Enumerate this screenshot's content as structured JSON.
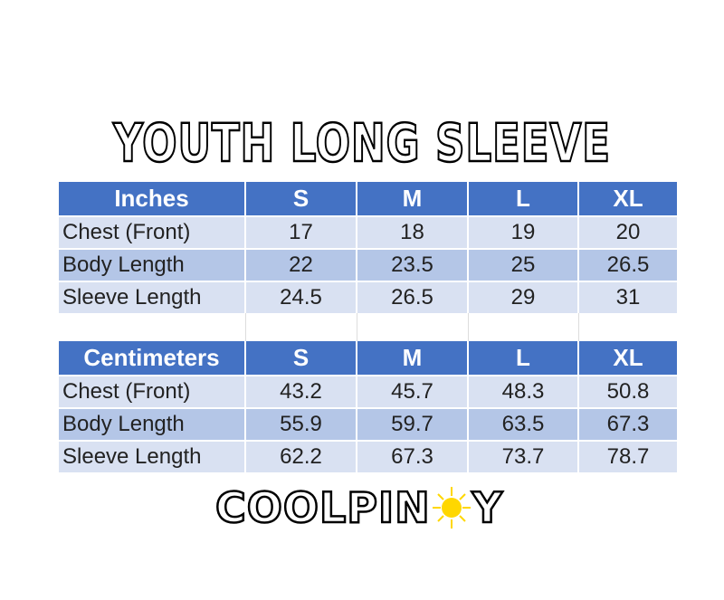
{
  "title": "YOUTH LONG SLEEVE",
  "colors": {
    "header": "#4472c4",
    "row_light": "#d9e1f2",
    "row_mid": "#b4c6e7",
    "sun": "#ffd700"
  },
  "inches": {
    "header": [
      "Inches",
      "S",
      "M",
      "L",
      "XL"
    ],
    "rows": [
      [
        "Chest (Front)",
        "17",
        "18",
        "19",
        "20"
      ],
      [
        "Body Length",
        "22",
        "23.5",
        "25",
        "26.5"
      ],
      [
        "Sleeve Length",
        "24.5",
        "26.5",
        "29",
        "31"
      ]
    ]
  },
  "centimeters": {
    "header": [
      "Centimeters",
      "S",
      "M",
      "L",
      "XL"
    ],
    "rows": [
      [
        "Chest (Front)",
        "43.2",
        "45.7",
        "48.3",
        "50.8"
      ],
      [
        "Body Length",
        "55.9",
        "59.7",
        "63.5",
        "67.3"
      ],
      [
        "Sleeve Length",
        "62.2",
        "67.3",
        "73.7",
        "78.7"
      ]
    ]
  },
  "logo": {
    "text_before": "COOLPIN",
    "text_after": "Y",
    "icon": "sun-icon"
  }
}
